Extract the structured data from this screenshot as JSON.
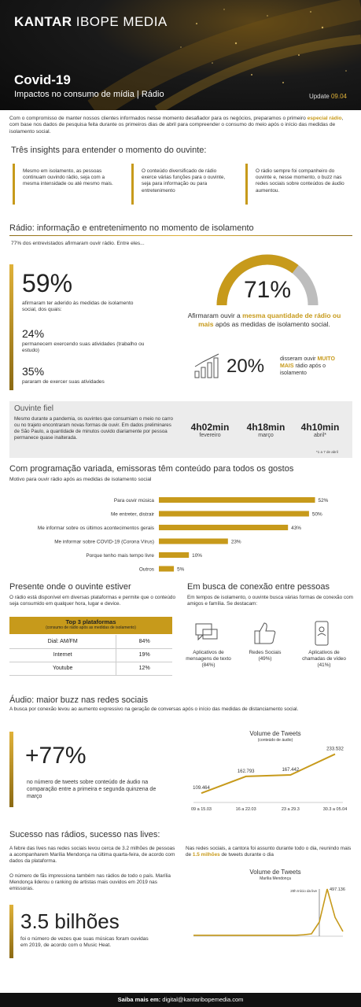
{
  "header": {
    "logo_bold": "KANTAR",
    "logo_light": " IBOPE MEDIA",
    "title": "Covid-19",
    "subtitle": "Impactos no consumo de mídia | Rádio",
    "update_label": "Update",
    "update_date": "09.04"
  },
  "intro": {
    "part1": "Com o compromisso de manter nossos clientes informados nesse momento desafiador para os negócios, preparamos o primeiro ",
    "highlight": "especial rádio",
    "part2": ", com base nos dados de pesquisa feita durante os primeiros dias de abril para compreender o consumo do meio após o início das medidas de isolamento social."
  },
  "insights": {
    "heading": "Três insights para entender o momento do ouvinte:",
    "items": [
      "Mesmo em isolamento, as pessoas continuam ouvindo rádio, seja com a mesma intensidade ou até mesmo mais.",
      "O conteúdo diversificado de rádio exerce várias funções para o ouvinte, seja para informação ou para entretenimento",
      "O rádio sempre foi companheiro do ouvinte e, nesse momento, o buzz nas redes sociais sobre conteúdos de áudio aumentou."
    ]
  },
  "isolamento": {
    "heading": "Rádio: informação e entretenimento no momento de isolamento",
    "lead": "77% dos entrevistados afirmaram ouvir rádio. Entre eles...",
    "s59_value": "59%",
    "s59_text": "afirmaram ter aderido às medidas de isolamento social, dos quais:",
    "s24_value": "24%",
    "s24_text": "permanecem exercendo suas atividades (trabalho ou estudo)",
    "s35_value": "35%",
    "s35_text": "pararam de exercer suas atividades",
    "s71_value": "71%",
    "s71_text_a": "Afirmaram ouvir a ",
    "s71_text_b": "mesma quantidade de rádio ou mais",
    "s71_text_c": " após as medidas de isolamento social.",
    "s71_fraction": 0.71,
    "s20_value": "20%",
    "s20_text_a": "disseram ouvir ",
    "s20_text_b": "MUITO MAIS",
    "s20_text_c": " rádio após o isolamento"
  },
  "ouvinte_fiel": {
    "title": "Ouvinte fiel",
    "text": "Mesmo durante a pandemia, os ouvintes que consumiam o meio no carro ou no trajeto encontraram novas formas de ouvir. Em dados preliminares de São Paulo, a quantidade de minutos ouvido diariamente por pessoa permanece quase inalterada.",
    "stats": [
      {
        "value": "4h02min",
        "label": "fevereiro"
      },
      {
        "value": "4h18min",
        "label": "março"
      },
      {
        "value": "4h10min",
        "label": "abril*"
      }
    ],
    "footnote": "*1 a 7 de abril"
  },
  "motivos": {
    "heading": "Com programação variada, emissoras têm conteúdo para todos os gostos",
    "subheading": "Motivo para ouvir rádio após as medidas de isolamento social"
  },
  "chart_data": [
    {
      "type": "bar",
      "orientation": "horizontal",
      "categories": [
        "Para ouvir música",
        "Me entreter, distrair",
        "Me informar sobre os últimos acontecimentos gerais",
        "Me informar sobre COVID-19 (Corona Vírus)",
        "Porque tenho mais tempo livre",
        "Outros"
      ],
      "values": [
        52,
        50,
        43,
        23,
        10,
        5
      ],
      "value_labels": [
        "52%",
        "50%",
        "43%",
        "23%",
        "10%",
        "5%"
      ],
      "xlim": [
        0,
        55
      ],
      "color": "#c79a1b"
    },
    {
      "type": "line",
      "title": "Volume de Tweets",
      "subtitle": "(conteúdo de áudio)",
      "categories": [
        "09 a 15.03",
        "16 a 22.03",
        "23 a 29.3",
        "30.3 a 05.04"
      ],
      "values": [
        109464,
        162793,
        167442,
        233532
      ],
      "value_labels": [
        "109.464",
        "162.793",
        "167.442",
        "233.532"
      ],
      "ylim": [
        80000,
        250000
      ],
      "color": "#c79a1b"
    },
    {
      "type": "line",
      "title": "Volume de Tweets",
      "subtitle": "Marília Mendonça",
      "peak_label": "497.136",
      "marker_label": "20h Início da live",
      "values": [
        2,
        2,
        2,
        2,
        2,
        2,
        2,
        2,
        2,
        2,
        2,
        2,
        2,
        2,
        3,
        5,
        30,
        100,
        40,
        10
      ],
      "ylim": [
        0,
        110
      ],
      "color": "#c79a1b"
    }
  ],
  "presente": {
    "heading": "Presente onde o ouvinte estiver",
    "text": "O rádio está disponível em diversas plataformas e permite que o conteúdo seja consumido em qualquer hora, lugar e device.",
    "table_title": "Top 3 plataformas",
    "table_sub": "(consumo de rádio após as medidas de isolamento)",
    "rows": [
      {
        "name": "Dial: AM/FM",
        "value": "84%"
      },
      {
        "name": "Internet",
        "value": "19%"
      },
      {
        "name": "Youtube",
        "value": "12%"
      }
    ]
  },
  "conexao": {
    "heading": "Em busca de conexão entre pessoas",
    "text": "Em tempos de isolamento, o ouvinte busca várias formas de conexão com amigos e família. Se destacam:",
    "items": [
      {
        "label": "Aplicativos de mensagens de texto (84%)",
        "icon": "chat-icon"
      },
      {
        "label": "Redes Sociais (49%)",
        "icon": "thumbs-up-icon"
      },
      {
        "label": "Aplicativos de chamadas de vídeo (41%)",
        "icon": "video-call-icon"
      }
    ]
  },
  "audio": {
    "heading": "Áudio: maior buzz nas redes sociais",
    "text": "A busca por conexão levou ao aumento expressivo na geração de conversas após o início das medidas de distanciamento social.",
    "big_value": "+77%",
    "big_text": "no número de tweets sobre conteúdo de áudio na comparação entre a primeira e segunda quinzena de março"
  },
  "sucesso": {
    "heading": "Sucesso nas rádios, sucesso nas lives:",
    "text1": "A febre das lives nas redes sociais levou cerca de 3.2 milhões de pessoas a acompanharem Marília Mendonça na última quarta-feira, de acordo com dados da plataforma.",
    "text2": "O número de fãs impressiona também nas rádios de todo o país. Marília Mendonça liderou o ranking de artistas mais ouvidos em 2019 nas emissoras.",
    "text3_a": "Nas redes sociais, a cantora foi assunto durante todo o dia, reunindo mais de ",
    "text3_b": "1.5 milhões",
    "text3_c": " de tweets durante o dia",
    "big_value": "3.5 bilhões",
    "big_text": "foi o número de vezes que suas músicas foram ouvidas em 2019, de acordo com o Music Heat."
  },
  "footer": {
    "label": "Saiba mais em:",
    "email": "digital@kantaribopemedia.com"
  },
  "colors": {
    "accent": "#c79a1b",
    "dark": "#111111",
    "panel": "#ececec"
  }
}
